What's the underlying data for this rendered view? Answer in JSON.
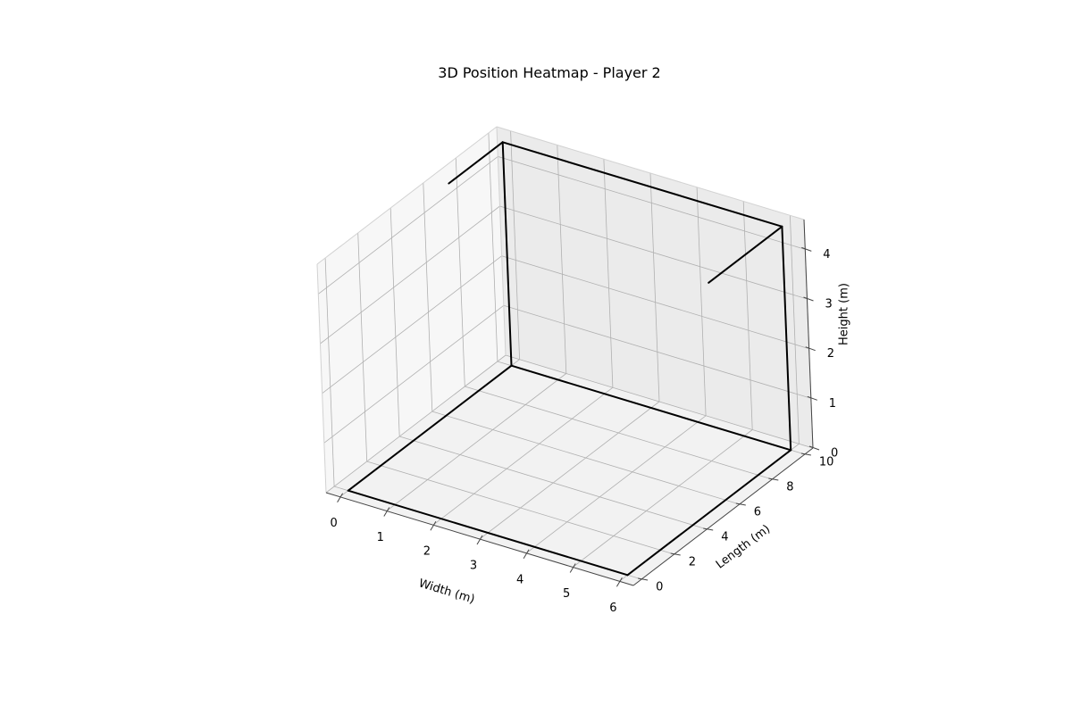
{
  "chart_data": {
    "type": "3d-line",
    "title": "3D Position Heatmap - Player 2",
    "xlabel": "Width (m)",
    "ylabel": "Length (m)",
    "zlabel": "Height (m)",
    "xlim": [
      -0.3,
      6.3
    ],
    "ylim": [
      -0.5,
      10.5
    ],
    "zlim": [
      0,
      4.6
    ],
    "xticks": [
      0,
      1,
      2,
      3,
      4,
      5,
      6
    ],
    "yticks": [
      0,
      2,
      4,
      6,
      8,
      10
    ],
    "zticks": [
      0,
      1,
      2,
      3,
      4
    ],
    "grid": true,
    "line_color": "#000000",
    "pane_colors": {
      "floor": "#f2f2f2",
      "back_wall": "#ebebeb",
      "side_wall": "#f7f7f7"
    },
    "segments": [
      {
        "from": [
          0,
          0,
          0
        ],
        "to": [
          6,
          0,
          0
        ]
      },
      {
        "from": [
          6,
          0,
          0
        ],
        "to": [
          6,
          10,
          0
        ]
      },
      {
        "from": [
          6,
          10,
          0
        ],
        "to": [
          0,
          10,
          0
        ]
      },
      {
        "from": [
          0,
          10,
          0
        ],
        "to": [
          0,
          0,
          0
        ]
      },
      {
        "from": [
          0,
          10,
          0
        ],
        "to": [
          0,
          10,
          4.5
        ]
      },
      {
        "from": [
          6,
          10,
          0
        ],
        "to": [
          6,
          10,
          4.5
        ]
      },
      {
        "from": [
          0,
          10,
          4.5
        ],
        "to": [
          6,
          10,
          4.5
        ]
      },
      {
        "from": [
          0,
          10,
          4.5
        ],
        "to": [
          0,
          6.7,
          4.5
        ]
      },
      {
        "from": [
          6,
          10,
          4.5
        ],
        "to": [
          6,
          5.5,
          4.5
        ]
      }
    ]
  }
}
